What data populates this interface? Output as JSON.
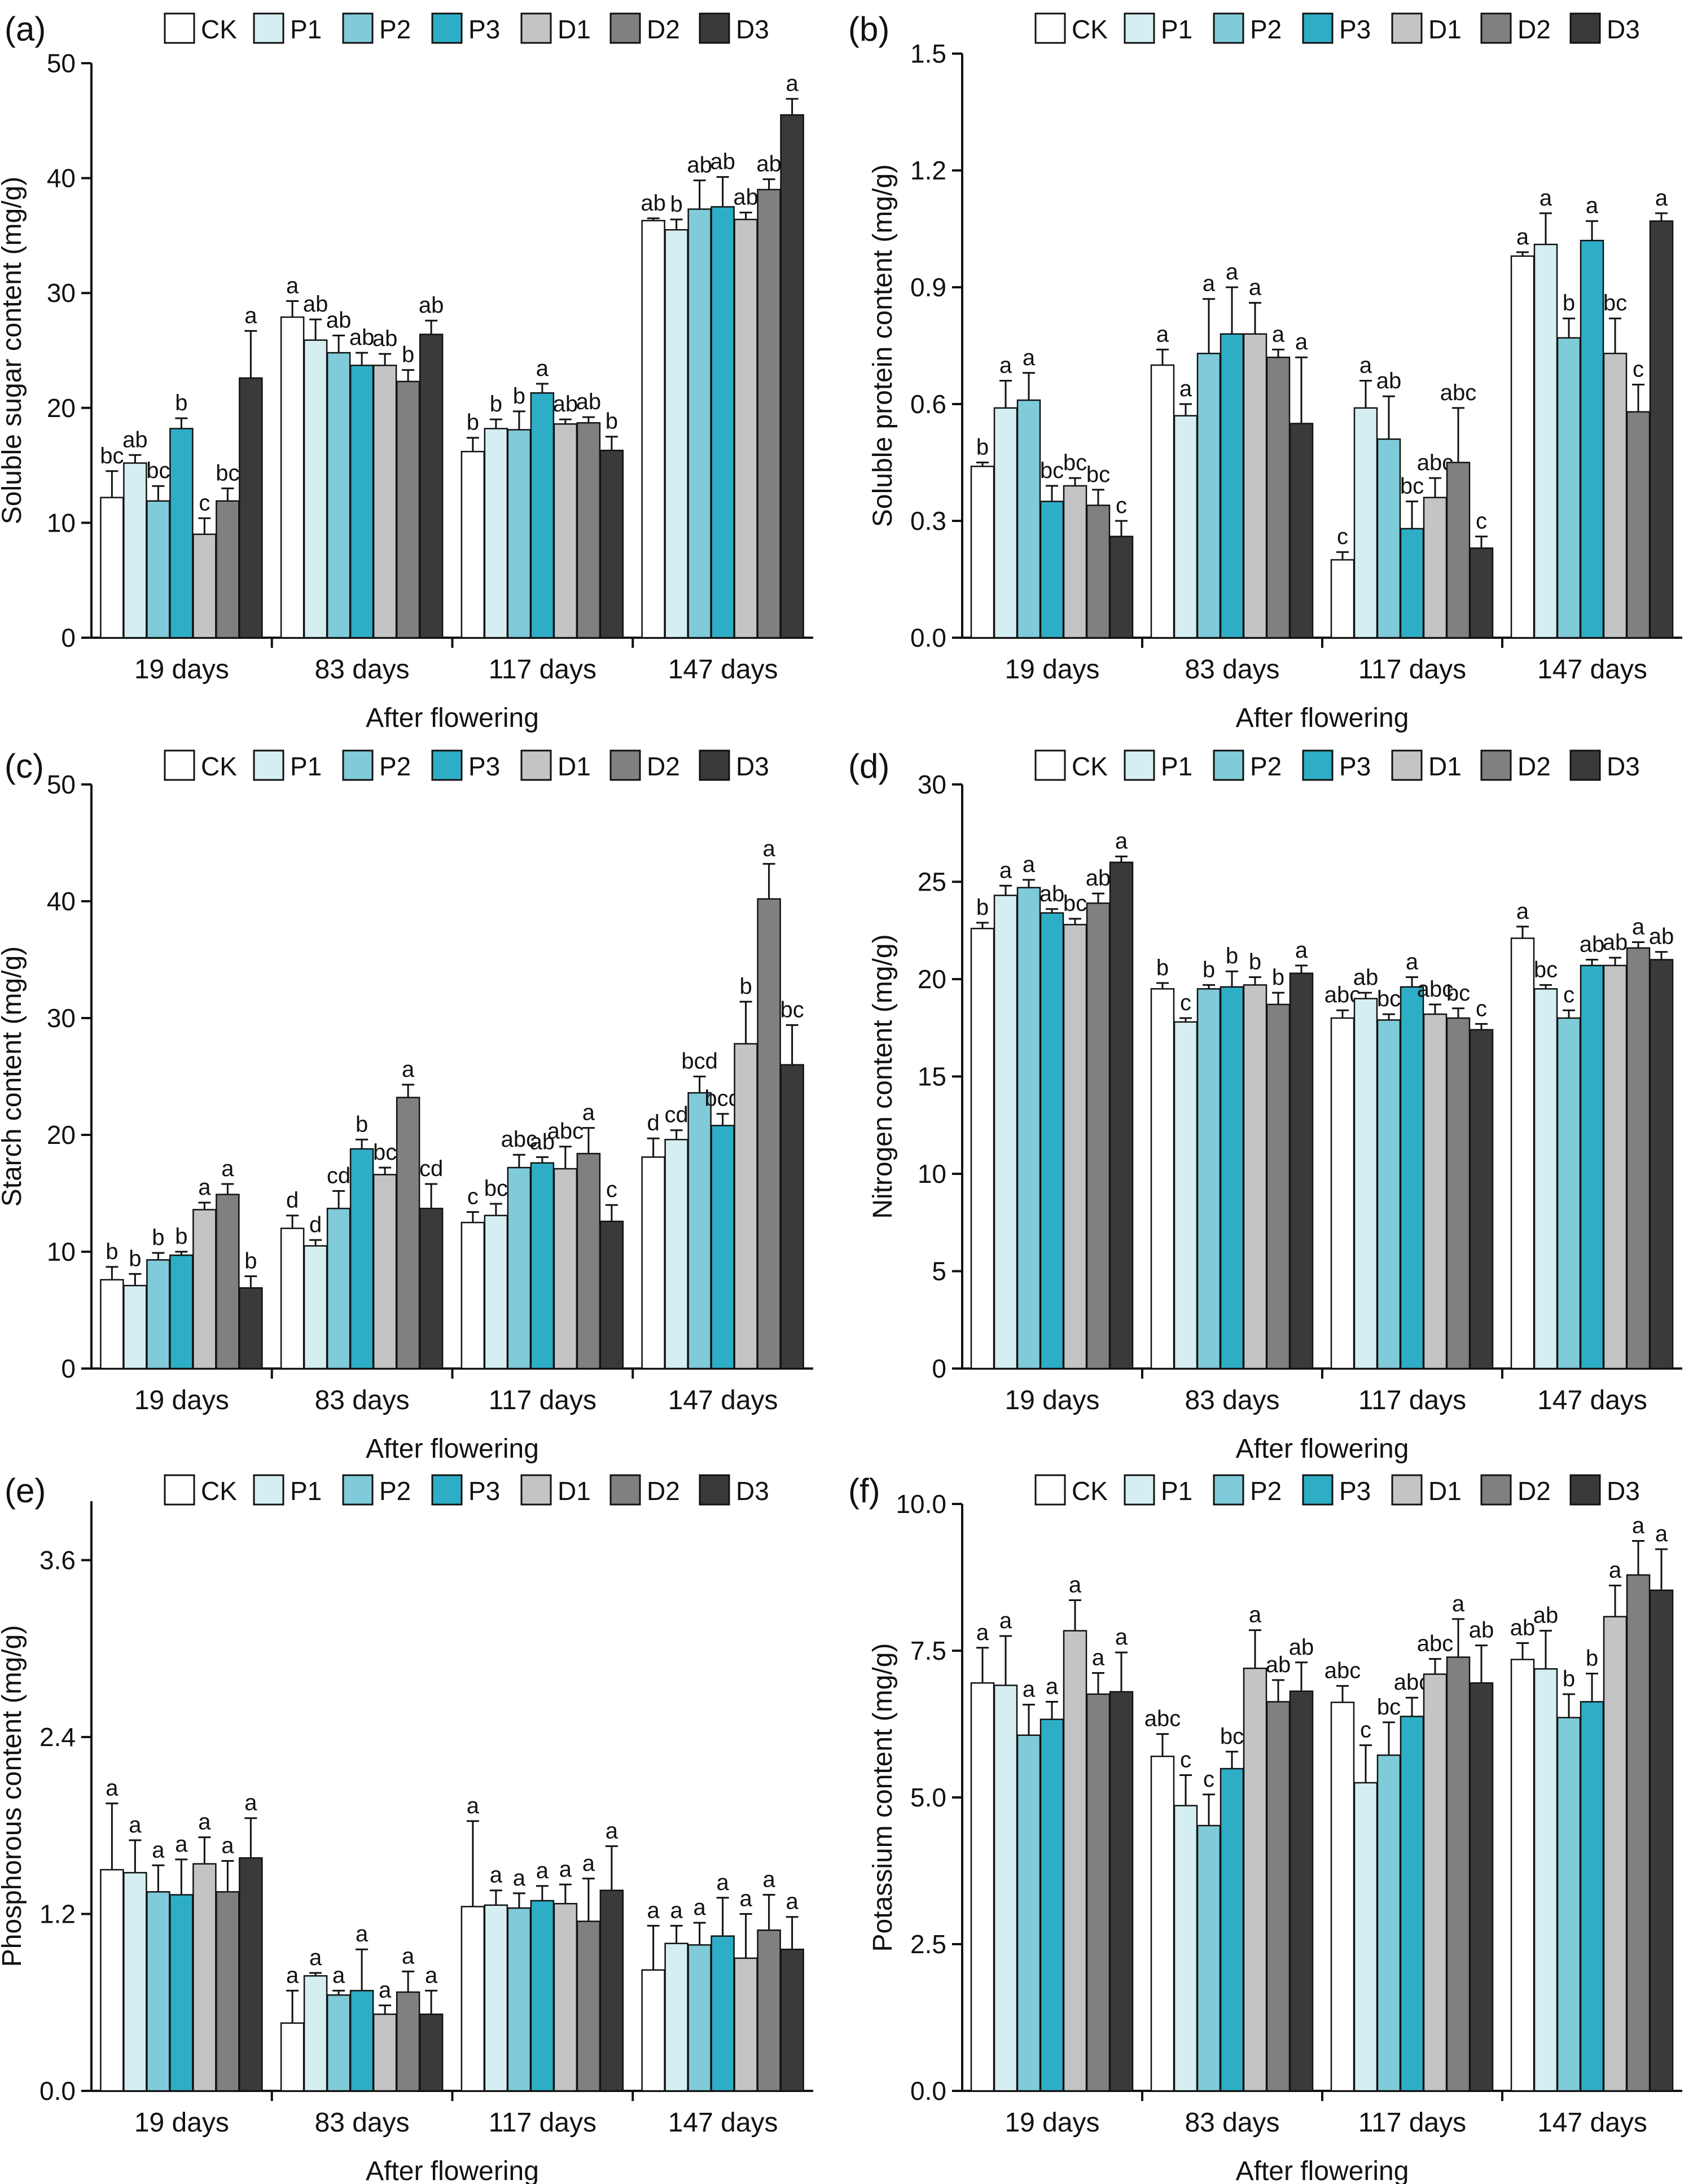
{
  "legend_labels": [
    "CK",
    "P1",
    "P2",
    "P3",
    "D1",
    "D2",
    "D3"
  ],
  "group_labels": [
    "19 days",
    "83 days",
    "117 days",
    "147 days"
  ],
  "colors": {
    "CK": "#ffffff",
    "P1": "#d5eef2",
    "P2": "#7fcbd9",
    "P3": "#2eaec6",
    "D1": "#c4c4c4",
    "D2": "#808080",
    "D3": "#3a3a3a",
    "axis": "#111111"
  },
  "chart_data": [
    {
      "panel": "(a)",
      "type": "bar",
      "xlabel": "After flowering",
      "ylabel": "Soluble sugar content (mg/g)",
      "ylim": [
        0,
        50
      ],
      "yticks": [
        "0",
        "10",
        "20",
        "30",
        "40",
        "50"
      ],
      "categories": [
        "19 days",
        "83 days",
        "117 days",
        "147 days"
      ],
      "series": [
        {
          "name": "CK",
          "values": [
            12.2,
            27.9,
            16.2,
            36.3
          ],
          "errors": [
            2.3,
            1.4,
            1.2,
            0.2
          ],
          "letters": [
            "bc",
            "a",
            "b",
            "ab"
          ]
        },
        {
          "name": "P1",
          "values": [
            15.2,
            25.9,
            18.2,
            35.5
          ],
          "errors": [
            0.7,
            1.8,
            0.8,
            0.9
          ],
          "letters": [
            "ab",
            "ab",
            "b",
            "b"
          ]
        },
        {
          "name": "P2",
          "values": [
            11.9,
            24.8,
            18.1,
            37.3
          ],
          "errors": [
            1.3,
            1.5,
            1.6,
            2.5
          ],
          "letters": [
            "bc",
            "ab",
            "b",
            "ab"
          ]
        },
        {
          "name": "P3",
          "values": [
            18.2,
            23.7,
            21.3,
            37.5
          ],
          "errors": [
            0.9,
            1.1,
            0.8,
            2.6
          ],
          "letters": [
            "b",
            "ab",
            "a",
            "ab"
          ]
        },
        {
          "name": "D1",
          "values": [
            9.0,
            23.7,
            18.6,
            36.4
          ],
          "errors": [
            1.4,
            1.0,
            0.4,
            0.6
          ],
          "letters": [
            "c",
            "ab",
            "ab",
            "ab"
          ]
        },
        {
          "name": "D2",
          "values": [
            11.9,
            22.3,
            18.7,
            39.0
          ],
          "errors": [
            1.1,
            1.0,
            0.5,
            0.9
          ],
          "letters": [
            "bc",
            "b",
            "ab",
            "ab"
          ]
        },
        {
          "name": "D3",
          "values": [
            22.6,
            26.4,
            16.3,
            45.5
          ],
          "errors": [
            4.1,
            1.2,
            1.2,
            1.4
          ],
          "letters": [
            "a",
            "ab",
            "b",
            "a"
          ]
        }
      ]
    },
    {
      "panel": "(b)",
      "type": "bar",
      "xlabel": "After flowering",
      "ylabel": "Soluble protein content (mg/g)",
      "ylim": [
        0,
        1.5
      ],
      "yticks": [
        "0.0",
        "0.3",
        "0.6",
        "0.9",
        "1.2",
        "1.5"
      ],
      "categories": [
        "19 days",
        "83 days",
        "117 days",
        "147 days"
      ],
      "series": [
        {
          "name": "CK",
          "values": [
            0.44,
            0.7,
            0.2,
            0.98
          ],
          "errors": [
            0.01,
            0.04,
            0.02,
            0.01
          ],
          "letters": [
            "b",
            "a",
            "c",
            "a"
          ]
        },
        {
          "name": "P1",
          "values": [
            0.59,
            0.57,
            0.59,
            1.01
          ],
          "errors": [
            0.07,
            0.03,
            0.07,
            0.08
          ],
          "letters": [
            "a",
            "a",
            "a",
            "a"
          ]
        },
        {
          "name": "P2",
          "values": [
            0.61,
            0.73,
            0.51,
            0.77
          ],
          "errors": [
            0.07,
            0.14,
            0.11,
            0.05
          ],
          "letters": [
            "a",
            "a",
            "ab",
            "b"
          ]
        },
        {
          "name": "P3",
          "values": [
            0.35,
            0.78,
            0.28,
            1.02
          ],
          "errors": [
            0.04,
            0.12,
            0.07,
            0.05
          ],
          "letters": [
            "bc",
            "a",
            "bc",
            "a"
          ]
        },
        {
          "name": "D1",
          "values": [
            0.39,
            0.78,
            0.36,
            0.73
          ],
          "errors": [
            0.02,
            0.08,
            0.05,
            0.09
          ],
          "letters": [
            "bc",
            "a",
            "abc",
            "bc"
          ]
        },
        {
          "name": "D2",
          "values": [
            0.34,
            0.72,
            0.45,
            0.58
          ],
          "errors": [
            0.04,
            0.02,
            0.14,
            0.07
          ],
          "letters": [
            "bc",
            "a",
            "abc",
            "c"
          ]
        },
        {
          "name": "D3",
          "values": [
            0.26,
            0.55,
            0.23,
            1.07
          ],
          "errors": [
            0.04,
            0.17,
            0.03,
            0.02
          ],
          "letters": [
            "c",
            "a",
            "c",
            "a"
          ]
        }
      ]
    },
    {
      "panel": "(c)",
      "type": "bar",
      "xlabel": "After flowering",
      "ylabel": "Starch content (mg/g)",
      "ylim": [
        0,
        50
      ],
      "yticks": [
        "0",
        "10",
        "20",
        "30",
        "40",
        "50"
      ],
      "categories": [
        "19 days",
        "83 days",
        "117 days",
        "147 days"
      ],
      "series": [
        {
          "name": "CK",
          "values": [
            7.6,
            12.0,
            12.5,
            18.1
          ],
          "errors": [
            1.1,
            1.1,
            0.9,
            1.6
          ],
          "letters": [
            "b",
            "d",
            "c",
            "d"
          ]
        },
        {
          "name": "P1",
          "values": [
            7.1,
            10.5,
            13.1,
            19.6
          ],
          "errors": [
            1.0,
            0.5,
            1.0,
            0.8
          ],
          "letters": [
            "b",
            "d",
            "bc",
            "cd"
          ]
        },
        {
          "name": "P2",
          "values": [
            9.3,
            13.7,
            17.2,
            23.6
          ],
          "errors": [
            0.6,
            1.5,
            1.1,
            1.4
          ],
          "letters": [
            "b",
            "cd",
            "abc",
            "bcd"
          ]
        },
        {
          "name": "P3",
          "values": [
            9.7,
            18.8,
            17.6,
            20.8
          ],
          "errors": [
            0.3,
            0.8,
            0.5,
            1.0
          ],
          "letters": [
            "b",
            "b",
            "ab",
            "bcd"
          ]
        },
        {
          "name": "D1",
          "values": [
            13.6,
            16.6,
            17.1,
            27.8
          ],
          "errors": [
            0.6,
            0.6,
            1.9,
            3.6
          ],
          "letters": [
            "a",
            "bc",
            "abc",
            "b"
          ]
        },
        {
          "name": "D2",
          "values": [
            14.9,
            23.2,
            18.4,
            40.2
          ],
          "errors": [
            0.9,
            1.1,
            2.2,
            3.0
          ],
          "letters": [
            "a",
            "a",
            "a",
            "a"
          ]
        },
        {
          "name": "D3",
          "values": [
            6.9,
            13.7,
            12.6,
            26.0
          ],
          "errors": [
            1.0,
            2.1,
            1.4,
            3.4
          ],
          "letters": [
            "b",
            "cd",
            "c",
            "bc"
          ]
        }
      ]
    },
    {
      "panel": "(d)",
      "type": "bar",
      "xlabel": "After flowering",
      "ylabel": "Nitrogen content (mg/g)",
      "ylim": [
        0,
        30
      ],
      "yticks": [
        "0",
        "5",
        "10",
        "15",
        "20",
        "25",
        "30"
      ],
      "categories": [
        "19 days",
        "83 days",
        "117 days",
        "147 days"
      ],
      "series": [
        {
          "name": "CK",
          "values": [
            22.6,
            19.5,
            18.0,
            22.1
          ],
          "errors": [
            0.3,
            0.3,
            0.4,
            0.6
          ],
          "letters": [
            "b",
            "b",
            "abc",
            "a"
          ]
        },
        {
          "name": "P1",
          "values": [
            24.3,
            17.8,
            19.0,
            19.5
          ],
          "errors": [
            0.5,
            0.2,
            0.3,
            0.2
          ],
          "letters": [
            "a",
            "c",
            "ab",
            "bc"
          ]
        },
        {
          "name": "P2",
          "values": [
            24.7,
            19.5,
            17.9,
            18.0
          ],
          "errors": [
            0.4,
            0.2,
            0.3,
            0.4
          ],
          "letters": [
            "a",
            "b",
            "bc",
            "c"
          ]
        },
        {
          "name": "P3",
          "values": [
            23.4,
            19.6,
            19.6,
            20.7
          ],
          "errors": [
            0.2,
            0.8,
            0.5,
            0.3
          ],
          "letters": [
            "ab",
            "b",
            "a",
            "ab"
          ]
        },
        {
          "name": "D1",
          "values": [
            22.8,
            19.7,
            18.2,
            20.7
          ],
          "errors": [
            0.3,
            0.4,
            0.5,
            0.4
          ],
          "letters": [
            "bc",
            "b",
            "abc",
            "ab"
          ]
        },
        {
          "name": "D2",
          "values": [
            23.9,
            18.7,
            18.0,
            21.6
          ],
          "errors": [
            0.5,
            0.6,
            0.5,
            0.3
          ],
          "letters": [
            "ab",
            "b",
            "bc",
            "a"
          ]
        },
        {
          "name": "D3",
          "values": [
            26.0,
            20.3,
            17.4,
            21.0
          ],
          "errors": [
            0.3,
            0.4,
            0.3,
            0.4
          ],
          "letters": [
            "a",
            "a",
            "c",
            "ab"
          ]
        }
      ]
    },
    {
      "panel": "(e)",
      "type": "bar",
      "xlabel": "After flowering",
      "ylabel": "Phosphorous content (mg/g)",
      "ylim": [
        0,
        4.0
      ],
      "yticks": [
        "0.0",
        "1.2",
        "2.4",
        "3.6"
      ],
      "ytick_values": [
        0,
        1.2,
        2.4,
        3.6
      ],
      "categories": [
        "19 days",
        "83 days",
        "117 days",
        "147 days"
      ],
      "series": [
        {
          "name": "CK",
          "values": [
            1.5,
            0.46,
            1.25,
            0.82
          ],
          "errors": [
            0.45,
            0.22,
            0.58,
            0.3
          ],
          "letters": [
            "a",
            "a",
            "a",
            "a"
          ]
        },
        {
          "name": "P1",
          "values": [
            1.48,
            0.78,
            1.26,
            1.0
          ],
          "errors": [
            0.22,
            0.02,
            0.1,
            0.12
          ],
          "letters": [
            "a",
            "a",
            "a",
            "a"
          ]
        },
        {
          "name": "P2",
          "values": [
            1.35,
            0.65,
            1.24,
            0.99
          ],
          "errors": [
            0.18,
            0.03,
            0.1,
            0.15
          ],
          "letters": [
            "a",
            "a",
            "a",
            "a"
          ]
        },
        {
          "name": "P3",
          "values": [
            1.33,
            0.68,
            1.29,
            1.05
          ],
          "errors": [
            0.24,
            0.28,
            0.1,
            0.26
          ],
          "letters": [
            "a",
            "a",
            "a",
            "a"
          ]
        },
        {
          "name": "D1",
          "values": [
            1.54,
            0.52,
            1.27,
            0.9
          ],
          "errors": [
            0.18,
            0.06,
            0.13,
            0.3
          ],
          "letters": [
            "a",
            "a",
            "a",
            "a"
          ]
        },
        {
          "name": "D2",
          "values": [
            1.35,
            0.67,
            1.15,
            1.09
          ],
          "errors": [
            0.21,
            0.14,
            0.29,
            0.24
          ],
          "letters": [
            "a",
            "a",
            "a",
            "a"
          ]
        },
        {
          "name": "D3",
          "values": [
            1.58,
            0.52,
            1.36,
            0.96
          ],
          "errors": [
            0.27,
            0.16,
            0.3,
            0.22
          ],
          "letters": [
            "a",
            "a",
            "a",
            "a"
          ]
        }
      ]
    },
    {
      "panel": "(f)",
      "type": "bar",
      "xlabel": "After flowering",
      "ylabel": "Potassium content (mg/g)",
      "ylim": [
        0,
        10
      ],
      "yticks": [
        "0.0",
        "2.5",
        "5.0",
        "7.5",
        "10.0"
      ],
      "categories": [
        "19 days",
        "83 days",
        "117 days",
        "147 days"
      ],
      "series": [
        {
          "name": "CK",
          "values": [
            6.95,
            5.7,
            6.62,
            7.35
          ],
          "errors": [
            0.6,
            0.38,
            0.28,
            0.28
          ],
          "letters": [
            "a",
            "abc",
            "abc",
            "ab"
          ]
        },
        {
          "name": "P1",
          "values": [
            6.91,
            4.86,
            5.25,
            7.19
          ],
          "errors": [
            0.84,
            0.52,
            0.64,
            0.65
          ],
          "letters": [
            "a",
            "c",
            "c",
            "ab"
          ]
        },
        {
          "name": "P2",
          "values": [
            6.06,
            4.52,
            5.72,
            6.36
          ],
          "errors": [
            0.52,
            0.53,
            0.56,
            0.4
          ],
          "letters": [
            "a",
            "c",
            "bc",
            "b"
          ]
        },
        {
          "name": "P3",
          "values": [
            6.33,
            5.49,
            6.38,
            6.63
          ],
          "errors": [
            0.3,
            0.29,
            0.32,
            0.48
          ],
          "letters": [
            "a",
            "bc",
            "abc",
            "b"
          ]
        },
        {
          "name": "D1",
          "values": [
            7.84,
            7.2,
            7.1,
            8.08
          ],
          "errors": [
            0.52,
            0.65,
            0.26,
            0.53
          ],
          "letters": [
            "a",
            "a",
            "abc",
            "a"
          ]
        },
        {
          "name": "D2",
          "values": [
            6.76,
            6.63,
            7.39,
            8.79
          ],
          "errors": [
            0.36,
            0.37,
            0.65,
            0.58
          ],
          "letters": [
            "a",
            "ab",
            "a",
            "a"
          ]
        },
        {
          "name": "D3",
          "values": [
            6.8,
            6.81,
            6.95,
            8.53
          ],
          "errors": [
            0.67,
            0.49,
            0.64,
            0.7
          ],
          "letters": [
            "a",
            "ab",
            "ab",
            "a"
          ]
        }
      ]
    }
  ]
}
